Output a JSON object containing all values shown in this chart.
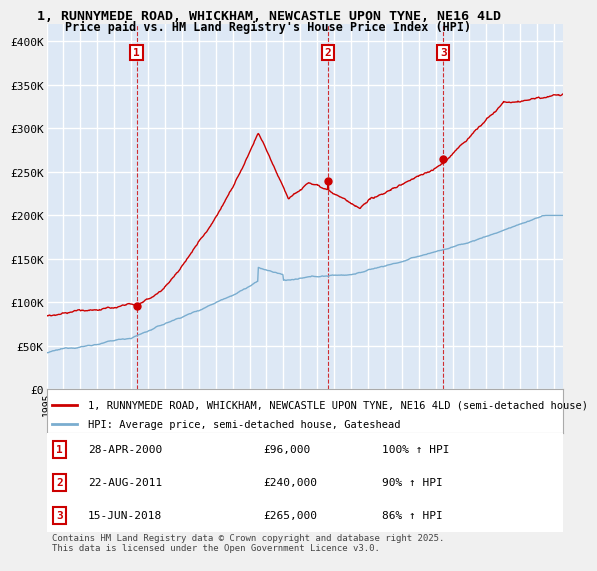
{
  "title": "1, RUNNYMEDE ROAD, WHICKHAM, NEWCASTLE UPON TYNE, NE16 4LD",
  "subtitle": "Price paid vs. HM Land Registry's House Price Index (HPI)",
  "ylim": [
    0,
    420000
  ],
  "yticks": [
    0,
    50000,
    100000,
    150000,
    200000,
    250000,
    300000,
    350000,
    400000
  ],
  "ytick_labels": [
    "£0",
    "£50K",
    "£100K",
    "£150K",
    "£200K",
    "£250K",
    "£300K",
    "£350K",
    "£400K"
  ],
  "sales": [
    {
      "num": 1,
      "date": "28-APR-2000",
      "price": 96000,
      "hpi_pct": "100%",
      "year": 2000.32
    },
    {
      "num": 2,
      "date": "22-AUG-2011",
      "price": 240000,
      "hpi_pct": "90%",
      "year": 2011.64
    },
    {
      "num": 3,
      "date": "15-JUN-2018",
      "price": 265000,
      "hpi_pct": "86%",
      "year": 2018.45
    }
  ],
  "legend_property": "1, RUNNYMEDE ROAD, WHICKHAM, NEWCASTLE UPON TYNE, NE16 4LD (semi-detached house)",
  "legend_hpi": "HPI: Average price, semi-detached house, Gateshead",
  "property_color": "#cc0000",
  "hpi_color": "#7aadcf",
  "background_color": "#dde8f5",
  "grid_color": "#ffffff",
  "fig_bg": "#f0f0f0",
  "footer": "Contains HM Land Registry data © Crown copyright and database right 2025.\nThis data is licensed under the Open Government Licence v3.0.",
  "xmin": 1995,
  "xmax": 2025.5
}
